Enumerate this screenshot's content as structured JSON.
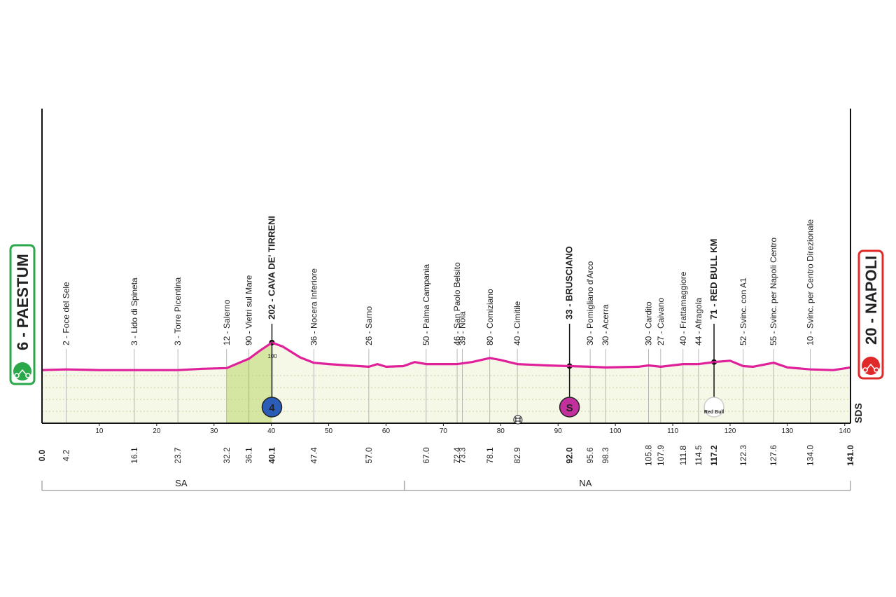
{
  "chart_data": {
    "type": "area",
    "x": [
      0,
      4.2,
      10,
      16.1,
      23.7,
      28,
      32.2,
      36.1,
      38,
      40.1,
      42,
      45,
      47.4,
      50,
      57,
      58.5,
      60,
      63,
      65,
      67,
      72.4,
      75,
      78.1,
      80,
      82.9,
      88,
      92,
      95.6,
      98.3,
      104,
      105.8,
      107.9,
      111.8,
      114.5,
      117.2,
      120,
      122.3,
      124,
      127.6,
      130,
      134,
      138,
      141
    ],
    "values": [
      79,
      80,
      79,
      79,
      79,
      81,
      82,
      96,
      108,
      120,
      114,
      98,
      90,
      88,
      84,
      88,
      84,
      85,
      91,
      88,
      88,
      91,
      97,
      94,
      88,
      86,
      85,
      84,
      83,
      84,
      86,
      84,
      88,
      88,
      91,
      93,
      85,
      84,
      90,
      83,
      80,
      79,
      83
    ],
    "color": "#e0209a",
    "fill": "#f5f8e6",
    "xlim": [
      0,
      141
    ],
    "xticks": [
      10,
      20,
      30,
      40,
      50,
      60,
      70,
      80,
      90,
      100,
      110,
      120,
      130,
      140
    ],
    "ylim": [
      0,
      468
    ],
    "yticks": [
      100
    ],
    "grid": true,
    "climb_range": [
      32.2,
      40.1
    ],
    "climb_color": "#d5e6a2",
    "waypoints": {
      "km": [
        0,
        4.2,
        16.1,
        23.7,
        32.2,
        36.1,
        40.1,
        47.4,
        57,
        67,
        72.4,
        73.3,
        78.1,
        82.9,
        92,
        95.6,
        98.3,
        105.8,
        107.9,
        111.8,
        114.5,
        117.2,
        122.3,
        127.6,
        134,
        141
      ],
      "km_labels": [
        "0.0",
        "4.2",
        "16.1",
        "23.7",
        "32.2",
        "36.1",
        "40.1",
        "47.4",
        "57.0",
        "67.0",
        "72.4",
        "73.3",
        "78.1",
        "82.9",
        "92.0",
        "95.6",
        "98.3",
        "105.8",
        "107.9",
        "111.8",
        "114.5",
        "117.2",
        "122.3",
        "127.6",
        "134.0",
        "141.0"
      ],
      "names": [
        "6 - PAESTUM",
        "2 - Foce del Sele",
        "3 - Lido di Spineta",
        "3 - Torre Picentina",
        "12 - Salerno",
        "90 - Vietri sul Mare",
        "202 - CAVA DE' TIRRENI",
        "36 - Nocera Inferiore",
        "26 - Sarno",
        "50 - Palma Campania",
        "46 - San Paolo Belsito",
        "39 - Nola",
        "80 - Comiziano",
        "40 - Cimitile",
        "33 - BRUSCIANO",
        "30 - Pomigliano d'Arco",
        "30 - Acerra",
        "30 - Cardito",
        "27 - Caivano",
        "40 - Frattamaggiore",
        "44 - Afragola",
        "71 - RED BULL KM",
        "52 - Svinc. con A1",
        "55 - Svinc. per Napoli Centro",
        "10 - Svinc. per Centro Direzionale",
        "20 - NAPOLI"
      ],
      "bold": [
        true,
        false,
        false,
        false,
        false,
        false,
        true,
        false,
        false,
        false,
        false,
        false,
        false,
        false,
        true,
        false,
        false,
        false,
        false,
        false,
        false,
        true,
        false,
        false,
        false,
        true
      ]
    },
    "markers": [
      {
        "km": 40.1,
        "label": "4",
        "color": "#2b5cb8"
      },
      {
        "km": 92,
        "label": "S",
        "color": "#c2309e"
      },
      {
        "km": 117.2,
        "label": "Red Bull",
        "color": "#d4202c"
      }
    ],
    "regions": [
      {
        "name": "SA",
        "from": 0,
        "to": 63.2
      },
      {
        "name": "NA",
        "from": 63.2,
        "to": 141
      }
    ],
    "start_color": "#2aa84a",
    "finish_color": "#e02a2a",
    "logo": "SDS"
  }
}
